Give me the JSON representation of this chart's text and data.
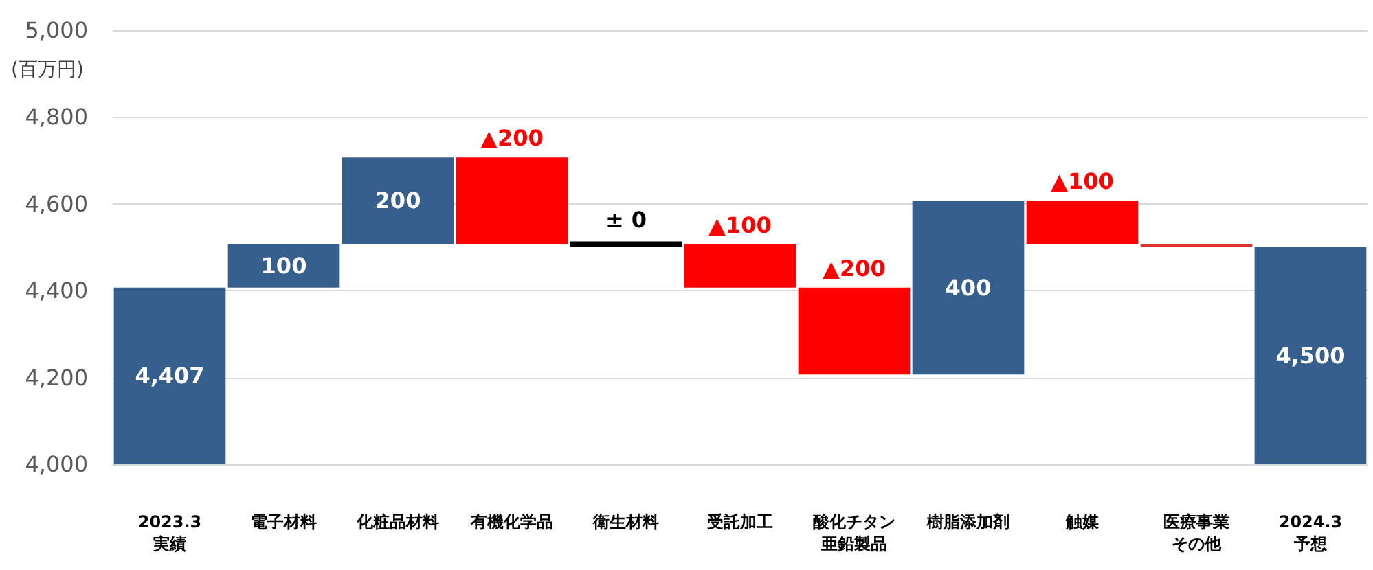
{
  "chart_data": {
    "type": "bar",
    "ylabel": "(百万円)",
    "categories": [
      "2023.3\n実績",
      "電子材料",
      "化粧品材料",
      "有機化学品",
      "衛生材料",
      "受託加工",
      "酸化チタン亜鉛製品",
      "樹脂添加剤",
      "触媒",
      "医療事業その他",
      "2024.3\n予想"
    ],
    "base": [
      4000,
      4407,
      4507,
      4707,
      4507,
      4507,
      4407,
      4207,
      4607,
      4507,
      4000
    ],
    "values": [
      407,
      100,
      200,
      -200,
      0,
      -100,
      -200,
      400,
      -100,
      -7,
      500
    ],
    "colors": [
      "#365f8e",
      "#365f8e",
      "#365f8e",
      "#ff0000",
      "#000000",
      "#ff0000",
      "#ff0000",
      "#365f8e",
      "#ff0000",
      "#e03030",
      "#365f8e"
    ],
    "value_labels": [
      "4,407",
      "100",
      "200",
      "▲200",
      "± 0",
      "▲100",
      "▲200",
      "400",
      "▲100",
      null,
      "4,500"
    ],
    "ylim": [
      4000,
      5000
    ],
    "yticks": [
      {
        "value": 4000,
        "label": "4,000"
      },
      {
        "value": 4200,
        "label": "4,200"
      },
      {
        "value": 4400,
        "label": "4,400"
      },
      {
        "value": 4600,
        "label": "4,600"
      },
      {
        "value": 4800,
        "label": "4,800"
      },
      {
        "value": 5000,
        "label": "5,000"
      }
    ],
    "grid": "y"
  }
}
